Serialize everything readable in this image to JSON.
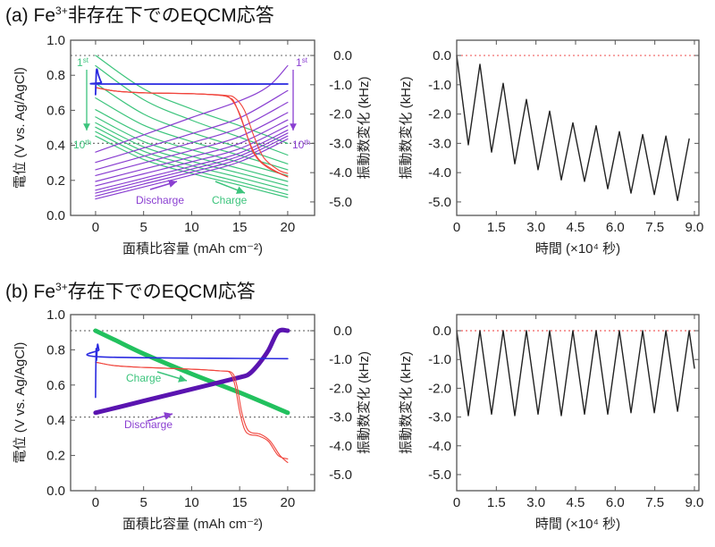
{
  "panels": [
    {
      "title": {
        "prefix": "(a) Fe",
        "sup": "3+",
        "rest": "非存在下でのEQCM応答"
      }
    },
    {
      "title": {
        "prefix": "(b) Fe",
        "sup": "3+",
        "rest": "存在下でのEQCM応答"
      }
    }
  ],
  "colors": {
    "charge": "#3cc47c",
    "discharge": "#8a3fd1",
    "discharge_dark": "#5a14b0",
    "potential_blue": "#2a2ae0",
    "potential_red": "#f0443c",
    "ref_gray": "#777777",
    "ref_red": "#f06060"
  },
  "chart_data": [
    {
      "id": "a-left",
      "type": "line",
      "xlabel": "面積比容量 (mAh cm⁻²)",
      "ylabel": "電位 (V vs. Ag/AgCl)",
      "y2label": "振動数変化 (kHz)",
      "xlim": [
        -2.6,
        22.8
      ],
      "ylim": [
        0,
        1.0
      ],
      "y2lim": [
        -5.46,
        0.52
      ],
      "xticks": [
        "0",
        "5",
        "10",
        "15",
        "20"
      ],
      "xtick_values": [
        0,
        5,
        10,
        15,
        20
      ],
      "yticks": [
        "0.0",
        "0.2",
        "0.4",
        "0.6",
        "0.8",
        "1.0"
      ],
      "ytick_values": [
        0,
        0.2,
        0.4,
        0.6,
        0.8,
        1.0
      ],
      "y2ticks": [
        "0.0",
        "-1.0",
        "-2.0",
        "-3.0",
        "-4.0",
        "-5.0"
      ],
      "y2tick_values": [
        0,
        -1,
        -2,
        -3,
        -4,
        -5
      ],
      "ref_lines": [
        {
          "axis": "y2",
          "value": 0,
          "color": "#777777"
        },
        {
          "axis": "y2",
          "value": -3,
          "color": "#777777"
        }
      ],
      "annotations": {
        "charge_first": {
          "n": "1",
          "sup": "st"
        },
        "charge_last": {
          "n": "10",
          "sup": "th"
        },
        "discharge_first": {
          "n": "1",
          "sup": "st"
        },
        "discharge_last": {
          "n": "10",
          "sup": "th"
        },
        "discharge": "Discharge",
        "charge": "Charge"
      },
      "series": [
        {
          "name": "charge-1",
          "axis": "y2",
          "color": "#3cc47c",
          "width": 1.2,
          "x": [
            0,
            5,
            10,
            15,
            20
          ],
          "y": [
            0,
            -1.14,
            -1.83,
            -2.4,
            -3.0
          ]
        },
        {
          "name": "charge-2",
          "axis": "y2",
          "color": "#3cc47c",
          "width": 1.2,
          "x": [
            0,
            5,
            10,
            15,
            20
          ],
          "y": [
            -0.35,
            -1.51,
            -2.21,
            -2.79,
            -3.4
          ]
        },
        {
          "name": "charge-3",
          "axis": "y2",
          "color": "#3cc47c",
          "width": 1.2,
          "x": [
            0,
            5,
            10,
            15,
            20
          ],
          "y": [
            -0.95,
            -2.0,
            -2.63,
            -3.15,
            -3.7
          ]
        },
        {
          "name": "charge-4",
          "axis": "y2",
          "color": "#3cc47c",
          "width": 1.2,
          "x": [
            0,
            5,
            10,
            15,
            20
          ],
          "y": [
            -1.45,
            -2.38,
            -2.94,
            -3.41,
            -3.9
          ]
        },
        {
          "name": "charge-5",
          "axis": "y2",
          "color": "#3cc47c",
          "width": 1.2,
          "x": [
            0,
            5,
            10,
            15,
            20
          ],
          "y": [
            -1.85,
            -2.7,
            -3.22,
            -3.65,
            -4.1
          ]
        },
        {
          "name": "charge-6",
          "axis": "y2",
          "color": "#3cc47c",
          "width": 1.2,
          "x": [
            0,
            5,
            10,
            15,
            20
          ],
          "y": [
            -2.1,
            -2.94,
            -3.44,
            -3.86,
            -4.3
          ]
        },
        {
          "name": "charge-7",
          "axis": "y2",
          "color": "#3cc47c",
          "width": 1.2,
          "x": [
            0,
            5,
            10,
            15,
            20
          ],
          "y": [
            -2.3,
            -3.12,
            -3.61,
            -4.02,
            -4.45
          ]
        },
        {
          "name": "charge-8",
          "axis": "y2",
          "color": "#3cc47c",
          "width": 1.2,
          "x": [
            0,
            5,
            10,
            15,
            20
          ],
          "y": [
            -2.45,
            -3.27,
            -3.76,
            -4.17,
            -4.6
          ]
        },
        {
          "name": "charge-9",
          "axis": "y2",
          "color": "#3cc47c",
          "width": 1.2,
          "x": [
            0,
            5,
            10,
            15,
            20
          ],
          "y": [
            -2.6,
            -3.42,
            -3.91,
            -4.32,
            -4.75
          ]
        },
        {
          "name": "charge-10",
          "axis": "y2",
          "color": "#3cc47c",
          "width": 1.2,
          "x": [
            0,
            5,
            10,
            15,
            20
          ],
          "y": [
            -2.75,
            -3.55,
            -4.03,
            -4.43,
            -4.85
          ]
        },
        {
          "name": "discharge-1",
          "axis": "y2",
          "color": "#8a3fd1",
          "width": 1.2,
          "x": [
            0,
            5,
            10,
            15,
            18,
            20
          ],
          "y": [
            -3.3,
            -2.71,
            -2.12,
            -1.55,
            -1.05,
            -0.35
          ]
        },
        {
          "name": "discharge-2",
          "axis": "y2",
          "color": "#8a3fd1",
          "width": 1.2,
          "x": [
            0,
            5,
            10,
            15,
            20
          ],
          "y": [
            -3.65,
            -3.16,
            -2.67,
            -2.13,
            -1.2
          ]
        },
        {
          "name": "discharge-3",
          "axis": "y2",
          "color": "#8a3fd1",
          "width": 1.2,
          "x": [
            0,
            5,
            10,
            15,
            20
          ],
          "y": [
            -3.9,
            -3.44,
            -2.98,
            -2.47,
            -1.6
          ]
        },
        {
          "name": "discharge-4",
          "axis": "y2",
          "color": "#8a3fd1",
          "width": 1.2,
          "x": [
            0,
            5,
            10,
            15,
            20
          ],
          "y": [
            -4.1,
            -3.67,
            -3.24,
            -2.77,
            -1.95
          ]
        },
        {
          "name": "discharge-5",
          "axis": "y2",
          "color": "#8a3fd1",
          "width": 1.2,
          "x": [
            0,
            5,
            10,
            15,
            20
          ],
          "y": [
            -4.3,
            -3.88,
            -3.46,
            -3.0,
            -2.2
          ]
        },
        {
          "name": "discharge-6",
          "axis": "y2",
          "color": "#8a3fd1",
          "width": 1.2,
          "x": [
            0,
            5,
            10,
            15,
            20
          ],
          "y": [
            -4.45,
            -4.04,
            -3.63,
            -3.18,
            -2.4
          ]
        },
        {
          "name": "discharge-7",
          "axis": "y2",
          "color": "#8a3fd1",
          "width": 1.2,
          "x": [
            0,
            5,
            10,
            15,
            20
          ],
          "y": [
            -4.6,
            -4.19,
            -3.78,
            -3.33,
            -2.55
          ]
        },
        {
          "name": "discharge-8",
          "axis": "y2",
          "color": "#8a3fd1",
          "width": 1.2,
          "x": [
            0,
            5,
            10,
            15,
            20
          ],
          "y": [
            -4.7,
            -4.29,
            -3.88,
            -3.43,
            -2.65
          ]
        },
        {
          "name": "discharge-9",
          "axis": "y2",
          "color": "#8a3fd1",
          "width": 1.2,
          "x": [
            0,
            5,
            10,
            15,
            20
          ],
          "y": [
            -4.8,
            -4.39,
            -3.98,
            -3.53,
            -2.75
          ]
        },
        {
          "name": "discharge-10",
          "axis": "y2",
          "color": "#8a3fd1",
          "width": 1.2,
          "x": [
            0,
            5,
            10,
            15,
            20
          ],
          "y": [
            -4.9,
            -4.49,
            -4.08,
            -3.63,
            -2.85
          ]
        },
        {
          "name": "potential-red-1",
          "axis": "y",
          "color": "#f0443c",
          "width": 1.1,
          "x": [
            0,
            2,
            5,
            10,
            13,
            14,
            14.5,
            15.5,
            16.5,
            18,
            20
          ],
          "y": [
            0.73,
            0.71,
            0.7,
            0.695,
            0.685,
            0.67,
            0.64,
            0.5,
            0.35,
            0.27,
            0.22
          ]
        },
        {
          "name": "potential-red-2",
          "axis": "y",
          "color": "#f0443c",
          "width": 1.1,
          "x": [
            0,
            2,
            5,
            10,
            13,
            14,
            15,
            16,
            17,
            18.5,
            20
          ],
          "y": [
            0.73,
            0.71,
            0.7,
            0.695,
            0.685,
            0.67,
            0.58,
            0.42,
            0.32,
            0.26,
            0.22
          ]
        },
        {
          "name": "potential-red-3",
          "axis": "y",
          "color": "#f0443c",
          "width": 1.1,
          "x": [
            0,
            2,
            5,
            10,
            13.5,
            14.5,
            15.5,
            16.5,
            17.5,
            19,
            20
          ],
          "y": [
            0.73,
            0.71,
            0.7,
            0.695,
            0.685,
            0.67,
            0.6,
            0.45,
            0.33,
            0.26,
            0.24
          ]
        },
        {
          "name": "potential-blue",
          "axis": "y",
          "color": "#2a2ae0",
          "width": 1.8,
          "x": [
            0,
            0.1,
            0.3,
            0.6,
            1,
            20
          ],
          "y": [
            0.69,
            0.83,
            0.8,
            0.76,
            0.75,
            0.75
          ]
        }
      ]
    },
    {
      "id": "a-right",
      "type": "line",
      "xlabel": "時間 (×10⁴ 秒)",
      "ylabel": "振動数変化 (kHz)",
      "xlim": [
        0,
        9.17
      ],
      "ylim": [
        -5.46,
        0.52
      ],
      "xticks": [
        "0",
        "1.5",
        "3.0",
        "4.5",
        "6.0",
        "7.5",
        "9.0"
      ],
      "xtick_values": [
        0,
        1.5,
        3,
        4.5,
        6,
        7.5,
        9
      ],
      "yticks": [
        "0.0",
        "-1.0",
        "-2.0",
        "-3.0",
        "-4.0",
        "-5.0"
      ],
      "ytick_values": [
        0,
        -1,
        -2,
        -3,
        -4,
        -5
      ],
      "ref_lines": [
        {
          "axis": "y",
          "value": 0,
          "color": "#f06060"
        }
      ],
      "series": [
        {
          "name": "frequency-change",
          "axis": "y",
          "color": "#222222",
          "width": 1.4,
          "x": [
            0,
            0.44,
            0.88,
            1.32,
            1.76,
            2.2,
            2.64,
            3.08,
            3.52,
            3.96,
            4.4,
            4.84,
            5.28,
            5.72,
            6.16,
            6.6,
            7.04,
            7.48,
            7.92,
            8.36,
            8.8
          ],
          "y": [
            0,
            -3.05,
            -0.3,
            -3.3,
            -0.95,
            -3.7,
            -1.5,
            -3.9,
            -1.9,
            -4.25,
            -2.3,
            -4.3,
            -2.4,
            -4.55,
            -2.6,
            -4.7,
            -2.7,
            -4.75,
            -2.75,
            -4.95,
            -2.85
          ]
        }
      ]
    },
    {
      "id": "b-left",
      "type": "line",
      "xlabel": "面積比容量 (mAh cm⁻²)",
      "ylabel": "電位 (V vs. Ag/AgCl)",
      "y2label": "振動数変化 (kHz)",
      "xlim": [
        -2.6,
        22.8
      ],
      "ylim": [
        0,
        1.0
      ],
      "y2lim": [
        -5.56,
        0.56
      ],
      "xticks": [
        "0",
        "5",
        "10",
        "15",
        "20"
      ],
      "xtick_values": [
        0,
        5,
        10,
        15,
        20
      ],
      "yticks": [
        "0.0",
        "0.2",
        "0.4",
        "0.6",
        "0.8",
        "1.0"
      ],
      "ytick_values": [
        0,
        0.2,
        0.4,
        0.6,
        0.8,
        1.0
      ],
      "y2ticks": [
        "0.0",
        "-1.0",
        "-2.0",
        "-3.0",
        "-4.0",
        "-5.0"
      ],
      "y2tick_values": [
        0,
        -1,
        -2,
        -3,
        -4,
        -5
      ],
      "ref_lines": [
        {
          "axis": "y2",
          "value": 0,
          "color": "#777777"
        },
        {
          "axis": "y2",
          "value": -3,
          "color": "#777777"
        }
      ],
      "annotations": {
        "discharge": "Discharge",
        "charge": "Charge"
      },
      "series": [
        {
          "name": "charge-all-cycles",
          "axis": "y2",
          "color": "#22c15e",
          "width": 5,
          "x": [
            0,
            2,
            5,
            10,
            15,
            20
          ],
          "y": [
            0,
            -0.32,
            -0.8,
            -1.5,
            -2.15,
            -2.85
          ]
        },
        {
          "name": "discharge-all-cycles",
          "axis": "y2",
          "color": "#5a14b0",
          "width": 5,
          "x": [
            0,
            2.5,
            5,
            10,
            15,
            16,
            17,
            18,
            19,
            20
          ],
          "y": [
            -2.85,
            -2.65,
            -2.44,
            -2.03,
            -1.62,
            -1.5,
            -1.15,
            -0.68,
            -0.03,
            0
          ]
        },
        {
          "name": "potential-red-1",
          "axis": "y",
          "color": "#f0443c",
          "width": 1.1,
          "x": [
            0,
            2,
            5,
            10,
            13,
            14,
            14.5,
            15,
            15.5,
            16,
            17,
            18,
            19,
            20
          ],
          "y": [
            0.73,
            0.71,
            0.7,
            0.69,
            0.68,
            0.67,
            0.6,
            0.45,
            0.35,
            0.32,
            0.31,
            0.28,
            0.2,
            0.18
          ]
        },
        {
          "name": "potential-red-2",
          "axis": "y",
          "color": "#f0443c",
          "width": 1.1,
          "x": [
            0,
            2,
            5,
            10,
            13,
            14.2,
            14.7,
            15.2,
            15.7,
            16.2,
            17.2,
            18.2,
            19.2,
            20
          ],
          "y": [
            0.73,
            0.71,
            0.7,
            0.69,
            0.68,
            0.67,
            0.6,
            0.45,
            0.36,
            0.33,
            0.32,
            0.28,
            0.2,
            0.16
          ]
        },
        {
          "name": "potential-blue",
          "axis": "y",
          "color": "#2a2ae0",
          "width": 1.6,
          "x": [
            0,
            0.05,
            0.1,
            0.2,
            0.35,
            0.6,
            20
          ],
          "y": [
            0.53,
            0.8,
            0.74,
            0.83,
            0.8,
            0.76,
            0.75
          ]
        }
      ]
    },
    {
      "id": "b-right",
      "type": "line",
      "xlabel": "時間 (×10⁴ 秒)",
      "ylabel": "振動数変化 (kHz)",
      "xlim": [
        0,
        9.17
      ],
      "ylim": [
        -5.56,
        0.56
      ],
      "xticks": [
        "0",
        "1.5",
        "3.0",
        "4.5",
        "6.0",
        "7.5",
        "9.0"
      ],
      "xtick_values": [
        0,
        1.5,
        3,
        4.5,
        6,
        7.5,
        9
      ],
      "yticks": [
        "0.0",
        "-1.0",
        "-2.0",
        "-3.0",
        "-4.0",
        "-5.0"
      ],
      "ytick_values": [
        0,
        -1,
        -2,
        -3,
        -4,
        -5
      ],
      "ref_lines": [
        {
          "axis": "y",
          "value": 0,
          "color": "#f06060"
        }
      ],
      "series": [
        {
          "name": "frequency-change",
          "axis": "y",
          "color": "#222222",
          "width": 1.4,
          "x": [
            0,
            0.44,
            0.88,
            1.32,
            1.76,
            2.2,
            2.64,
            3.08,
            3.52,
            3.96,
            4.4,
            4.84,
            5.28,
            5.72,
            6.16,
            6.6,
            7.04,
            7.48,
            7.92,
            8.36,
            8.8,
            9.0
          ],
          "y": [
            0,
            -2.95,
            0,
            -2.9,
            0,
            -2.95,
            0,
            -2.9,
            0,
            -2.95,
            0,
            -2.9,
            0,
            -2.9,
            0,
            -2.85,
            0,
            -2.85,
            0,
            -2.8,
            0,
            -1.3
          ]
        }
      ]
    }
  ]
}
